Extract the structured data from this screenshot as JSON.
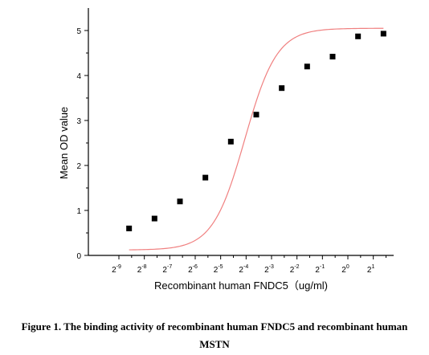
{
  "chart_data": {
    "type": "scatter",
    "xlabel": "Recombinant human  FNDC5（ug/ml)",
    "ylabel": "Mean OD value",
    "x_scale": "log2",
    "x_ticks": [
      {
        "base": "2",
        "exp": "-9"
      },
      {
        "base": "2",
        "exp": "-8"
      },
      {
        "base": "2",
        "exp": "-7"
      },
      {
        "base": "2",
        "exp": "-6"
      },
      {
        "base": "2",
        "exp": "-5"
      },
      {
        "base": "2",
        "exp": "-4"
      },
      {
        "base": "2",
        "exp": "-3"
      },
      {
        "base": "2",
        "exp": "-2"
      },
      {
        "base": "2",
        "exp": "-1"
      },
      {
        "base": "2",
        "exp": "0"
      },
      {
        "base": "2",
        "exp": "1"
      }
    ],
    "y_ticks": [
      "0",
      "1",
      "2",
      "3",
      "4",
      "5"
    ],
    "xlim_log2": [
      -10.2,
      1.8
    ],
    "ylim": [
      0,
      5.5
    ],
    "points": [
      {
        "x_log2": -8.6,
        "y": 0.6
      },
      {
        "x_log2": -7.6,
        "y": 0.82
      },
      {
        "x_log2": -6.6,
        "y": 1.2
      },
      {
        "x_log2": -5.6,
        "y": 1.73
      },
      {
        "x_log2": -4.6,
        "y": 2.53
      },
      {
        "x_log2": -3.6,
        "y": 3.13
      },
      {
        "x_log2": -2.6,
        "y": 3.72
      },
      {
        "x_log2": -1.6,
        "y": 4.2
      },
      {
        "x_log2": -0.6,
        "y": 4.42
      },
      {
        "x_log2": 0.4,
        "y": 4.87
      },
      {
        "x_log2": 1.4,
        "y": 4.93
      }
    ],
    "fit_curve": {
      "bottom": 0.12,
      "top": 5.05,
      "ec50_log2": -4.05,
      "slope": 0.63,
      "color": "#f08080"
    },
    "marker_color": "#000000"
  },
  "caption": {
    "line1": "Figure 1. The binding activity of recombinant human FNDC5 and recombinant human",
    "line2": "MSTN"
  }
}
